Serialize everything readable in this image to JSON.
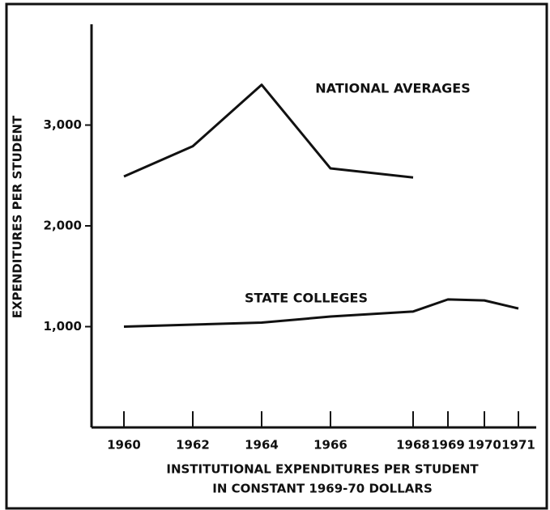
{
  "chart_data": {
    "type": "line",
    "ylabel": "EXPENDITURES PER STUDENT",
    "xlabel_lines": [
      "INSTITUTIONAL EXPENDITURES PER STUDENT",
      "IN CONSTANT 1969-70 DOLLARS"
    ],
    "categories": [
      "1960",
      "1962",
      "1964",
      "1966",
      "1968",
      "1969",
      "1970",
      "1971"
    ],
    "series": [
      {
        "name": "NATIONAL AVERAGES",
        "color": "#111111",
        "values": [
          2490,
          2790,
          3400,
          2570,
          2480,
          null,
          null,
          null
        ]
      },
      {
        "name": "STATE COLLEGES",
        "color": "#111111",
        "values": [
          1000,
          1020,
          1040,
          1100,
          1150,
          1270,
          1260,
          1180
        ]
      }
    ],
    "ylim": [
      0,
      4000
    ],
    "yticks": [
      {
        "value": 1000,
        "label": "1,000"
      },
      {
        "value": 2000,
        "label": "2,000"
      },
      {
        "value": 3000,
        "label": "3,000"
      }
    ],
    "grid": false
  }
}
